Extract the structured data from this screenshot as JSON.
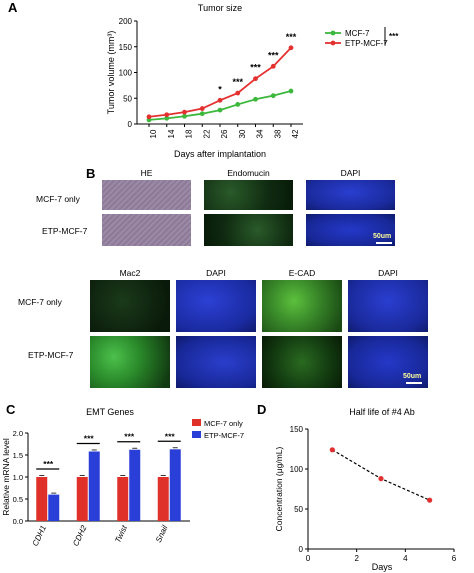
{
  "panels": {
    "a": {
      "letter": "A"
    },
    "b": {
      "letter": "B",
      "top_headers": [
        "HE",
        "Endomucin",
        "DAPI"
      ],
      "top_rows": [
        "MCF-7 only",
        "ETP-MCF-7"
      ],
      "bottom_headers": [
        "Mac2",
        "DAPI",
        "E-CAD",
        "DAPI"
      ],
      "bottom_rows": [
        "MCF-7 only",
        "ETP-MCF-7"
      ],
      "scale_label": "50um",
      "colors": {
        "he": "#8e7d9b",
        "green": "#1d4a1d",
        "blue": "#1b2fb4",
        "mac2_etp": "#3aa93a",
        "ecad": "#3c8f2c"
      }
    },
    "c": {
      "letter": "C"
    },
    "d": {
      "letter": "D"
    }
  },
  "chart_data": [
    {
      "type": "line",
      "title": "Tumor size",
      "xlabel": "Days after implantation",
      "ylabel": "Tumor volume (mm³)",
      "x": [
        10,
        14,
        18,
        22,
        26,
        30,
        34,
        38,
        42
      ],
      "ylim": [
        0,
        200
      ],
      "yticks": [
        0,
        50,
        100,
        150,
        200
      ],
      "series": [
        {
          "name": "MCF-7",
          "color": "#3cb83c",
          "values": [
            8,
            11,
            15,
            20,
            27,
            38,
            48,
            55,
            64
          ]
        },
        {
          "name": "ETP-MCF-7",
          "color": "#e53030",
          "values": [
            14,
            18,
            23,
            30,
            46,
            60,
            88,
            112,
            148
          ]
        }
      ],
      "significance": [
        {
          "x": 26,
          "label": "*"
        },
        {
          "x": 30,
          "label": "***"
        },
        {
          "x": 34,
          "label": "***"
        },
        {
          "x": 38,
          "label": "***"
        },
        {
          "x": 42,
          "label": "***"
        }
      ],
      "legend_significance": "***",
      "legend_position": "top-right"
    },
    {
      "type": "bar",
      "title": "EMT Genes",
      "ylabel": "Relative mRNA level",
      "categories": [
        "CDH1",
        "CDH2",
        "Twist",
        "Snail"
      ],
      "ylim": [
        0,
        2.0
      ],
      "yticks": [
        "0.0",
        "0.5",
        "1.0",
        "1.5",
        "2.0"
      ],
      "series": [
        {
          "name": "MCF-7 only",
          "color": "#e0302a",
          "values": [
            1.0,
            1.0,
            1.0,
            1.0
          ]
        },
        {
          "name": "ETP-MCF-7",
          "color": "#2a3fd8",
          "values": [
            0.6,
            1.58,
            1.62,
            1.63
          ]
        }
      ],
      "significance": [
        "***",
        "***",
        "***",
        "***"
      ],
      "legend_position": "top-right"
    },
    {
      "type": "line",
      "title": "Half life of #4 Ab",
      "xlabel": "Days",
      "ylabel": "Concentration (μg/mL)",
      "x": [
        1,
        3,
        5
      ],
      "xlim": [
        0,
        6
      ],
      "xticks": [
        0,
        2,
        4,
        6
      ],
      "ylim": [
        0,
        150
      ],
      "yticks": [
        0,
        50,
        100,
        150
      ],
      "series": [
        {
          "name": "",
          "color": "#e03030",
          "values": [
            124,
            88,
            61
          ]
        }
      ]
    }
  ]
}
